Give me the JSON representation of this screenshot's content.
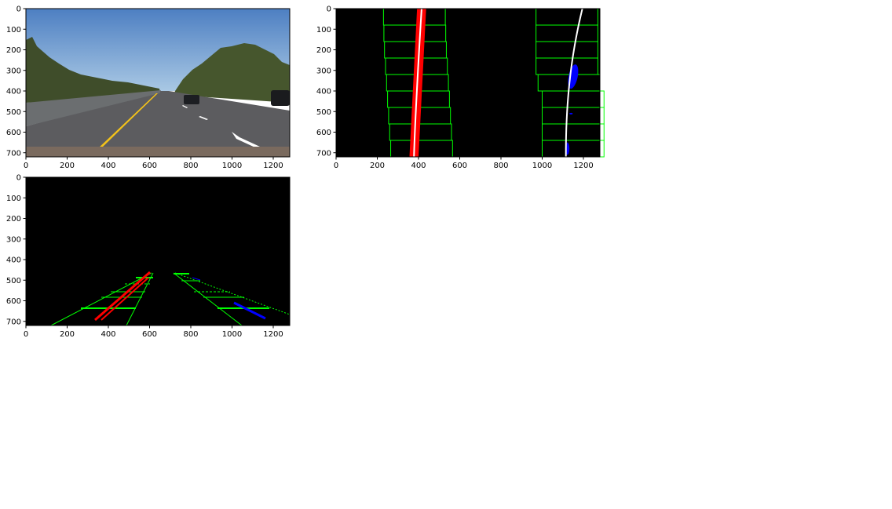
{
  "figure": {
    "background": "#ffffff"
  },
  "chart_data": [
    {
      "type": "image",
      "image_content": "road-photo",
      "xlim": [
        0,
        1280
      ],
      "ylim": [
        720,
        0
      ],
      "xticks": [
        0,
        200,
        400,
        600,
        800,
        1000,
        1200
      ],
      "yticks": [
        0,
        100,
        200,
        300,
        400,
        500,
        600,
        700
      ],
      "title": "",
      "xlabel": "",
      "ylabel": ""
    },
    {
      "type": "image",
      "image_content": "sliding-window-lane-fit",
      "xlim": [
        0,
        1280
      ],
      "ylim": [
        720,
        0
      ],
      "xticks": [
        0,
        200,
        400,
        600,
        800,
        1000,
        1200
      ],
      "yticks": [
        0,
        100,
        200,
        300,
        400,
        500,
        600,
        700
      ],
      "left_window_centers": [
        415,
        410,
        405,
        400,
        395,
        390,
        385,
        382,
        380
      ],
      "right_window_centers": [
        1150,
        1150,
        1150,
        1150,
        1130,
        1120,
        1120,
        1120,
        1120
      ],
      "window_half_width": 150,
      "window_height": 80,
      "left_fit_x_top": 415,
      "left_fit_x_bottom": 378,
      "right_fit_x_top": 1195,
      "right_fit_x_bottom": 1115,
      "colors": {
        "left_pixels": "#ff0000",
        "right_pixels": "#0000ff",
        "windows": "#00ff00",
        "fit": "#ffffff"
      },
      "title": "",
      "xlabel": "",
      "ylabel": ""
    },
    {
      "type": "image",
      "image_content": "binary-lane-detection",
      "xlim": [
        0,
        1280
      ],
      "ylim": [
        720,
        0
      ],
      "xticks": [
        0,
        200,
        400,
        600,
        800,
        1000,
        1200
      ],
      "yticks": [
        0,
        100,
        200,
        300,
        400,
        500,
        600,
        700
      ],
      "colors": {
        "left_lane": "#ff0000",
        "right_lane": "#0000ff",
        "markings": "#00ff00"
      },
      "title": "",
      "xlabel": "",
      "ylabel": ""
    }
  ]
}
